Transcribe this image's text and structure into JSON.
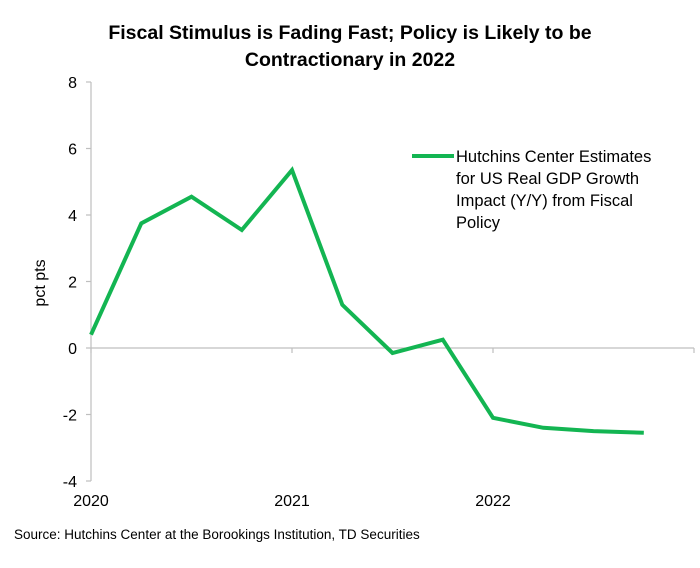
{
  "chart_data": {
    "type": "line",
    "title_lines": [
      "Fiscal Stimulus is Fading Fast; Policy is Likely to be",
      "Contractionary in 2022"
    ],
    "ylabel": "pct pts",
    "xlabel": "",
    "ylim": [
      -4,
      8
    ],
    "y_ticks": [
      "8",
      "6",
      "4",
      "2",
      "0",
      "-2",
      "-4"
    ],
    "y_tick_values": [
      8,
      6,
      4,
      2,
      0,
      -2,
      -4
    ],
    "x_ticks": [
      "2020",
      "2021",
      "2022"
    ],
    "x_tick_values": [
      2020.0,
      2021.0,
      2022.0
    ],
    "xlim": [
      2020.0,
      2023.0
    ],
    "grid": false,
    "legend_position": "top-right",
    "series": [
      {
        "name": "Hutchins Center Estimates for US Real GDP Growth Impact (Y/Y) from Fiscal Policy",
        "legend_lines": [
          "Hutchins Center Estimates",
          "for US Real GDP Growth",
          "Impact (Y/Y) from Fiscal",
          "Policy"
        ],
        "color": "#13b552",
        "x": [
          2020.0,
          2020.25,
          2020.5,
          2020.75,
          2021.0,
          2021.25,
          2021.5,
          2021.75,
          2022.0,
          2022.25,
          2022.5,
          2022.75
        ],
        "values": [
          0.4,
          3.75,
          4.55,
          3.55,
          5.35,
          1.3,
          -0.15,
          0.25,
          -2.1,
          -2.4,
          -2.5,
          -2.55
        ]
      }
    ],
    "source": "Source: Hutchins Center at the Borookings Institution, TD Securities"
  }
}
